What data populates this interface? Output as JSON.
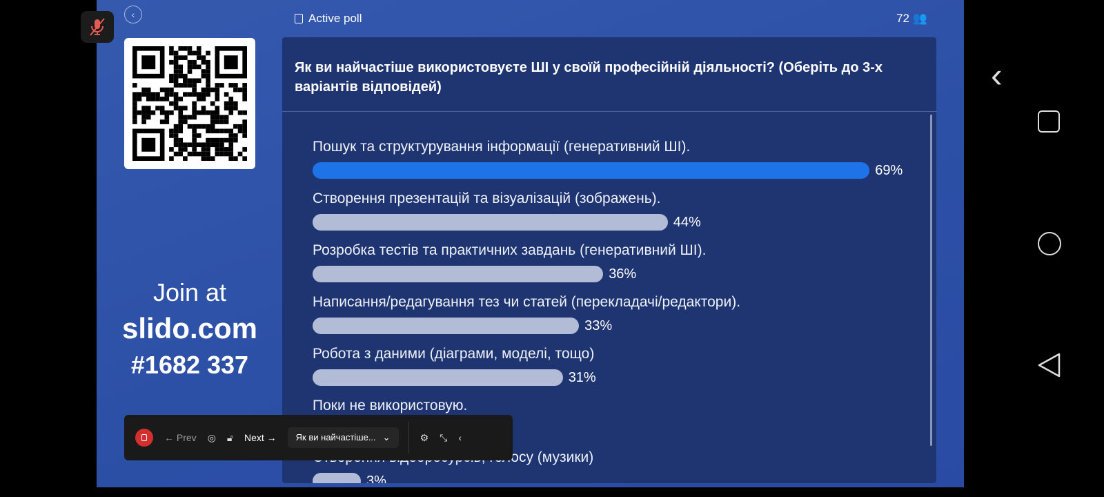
{
  "header": {
    "active_poll": "Active poll",
    "participants": "72"
  },
  "join": {
    "line1": "Join at",
    "site": "slido.com",
    "code": "#1682 337"
  },
  "poll": {
    "question": "Як ви найчастіше використовуєте ШІ у своїй професійній діяльності? (Оберіть до 3-х варіантів відповідей)",
    "options": [
      {
        "label": "Пошук та структурування інформації (генеративний ШІ).",
        "percent": 69,
        "pct_label": "69%"
      },
      {
        "label": "Створення презентацій та візуалізацій (зображень).",
        "percent": 44,
        "pct_label": "44%"
      },
      {
        "label": "Розробка тестів та практичних завдань (генеративний ШІ).",
        "percent": 36,
        "pct_label": "36%"
      },
      {
        "label": "Написання/редагування тез чи статей (перекладачі/редактори).",
        "percent": 33,
        "pct_label": "33%"
      },
      {
        "label": "Робота з даними (діаграми, моделі, тощо)",
        "percent": 31,
        "pct_label": "31%"
      },
      {
        "label": "Поки не використовую."
      },
      {
        "label": "Створення відеоресурсів, голосу (музики)",
        "percent": 3,
        "pct_label": "3%"
      }
    ]
  },
  "toolbar": {
    "prev": "← Prev",
    "next": "Next →",
    "poll_select": "Як ви найчастіше..."
  },
  "colors": {
    "slide_bg": "#2f52a8",
    "panel": "#1f3572",
    "top_bar": "#1f73e8",
    "bar": "#b3bcd6"
  }
}
